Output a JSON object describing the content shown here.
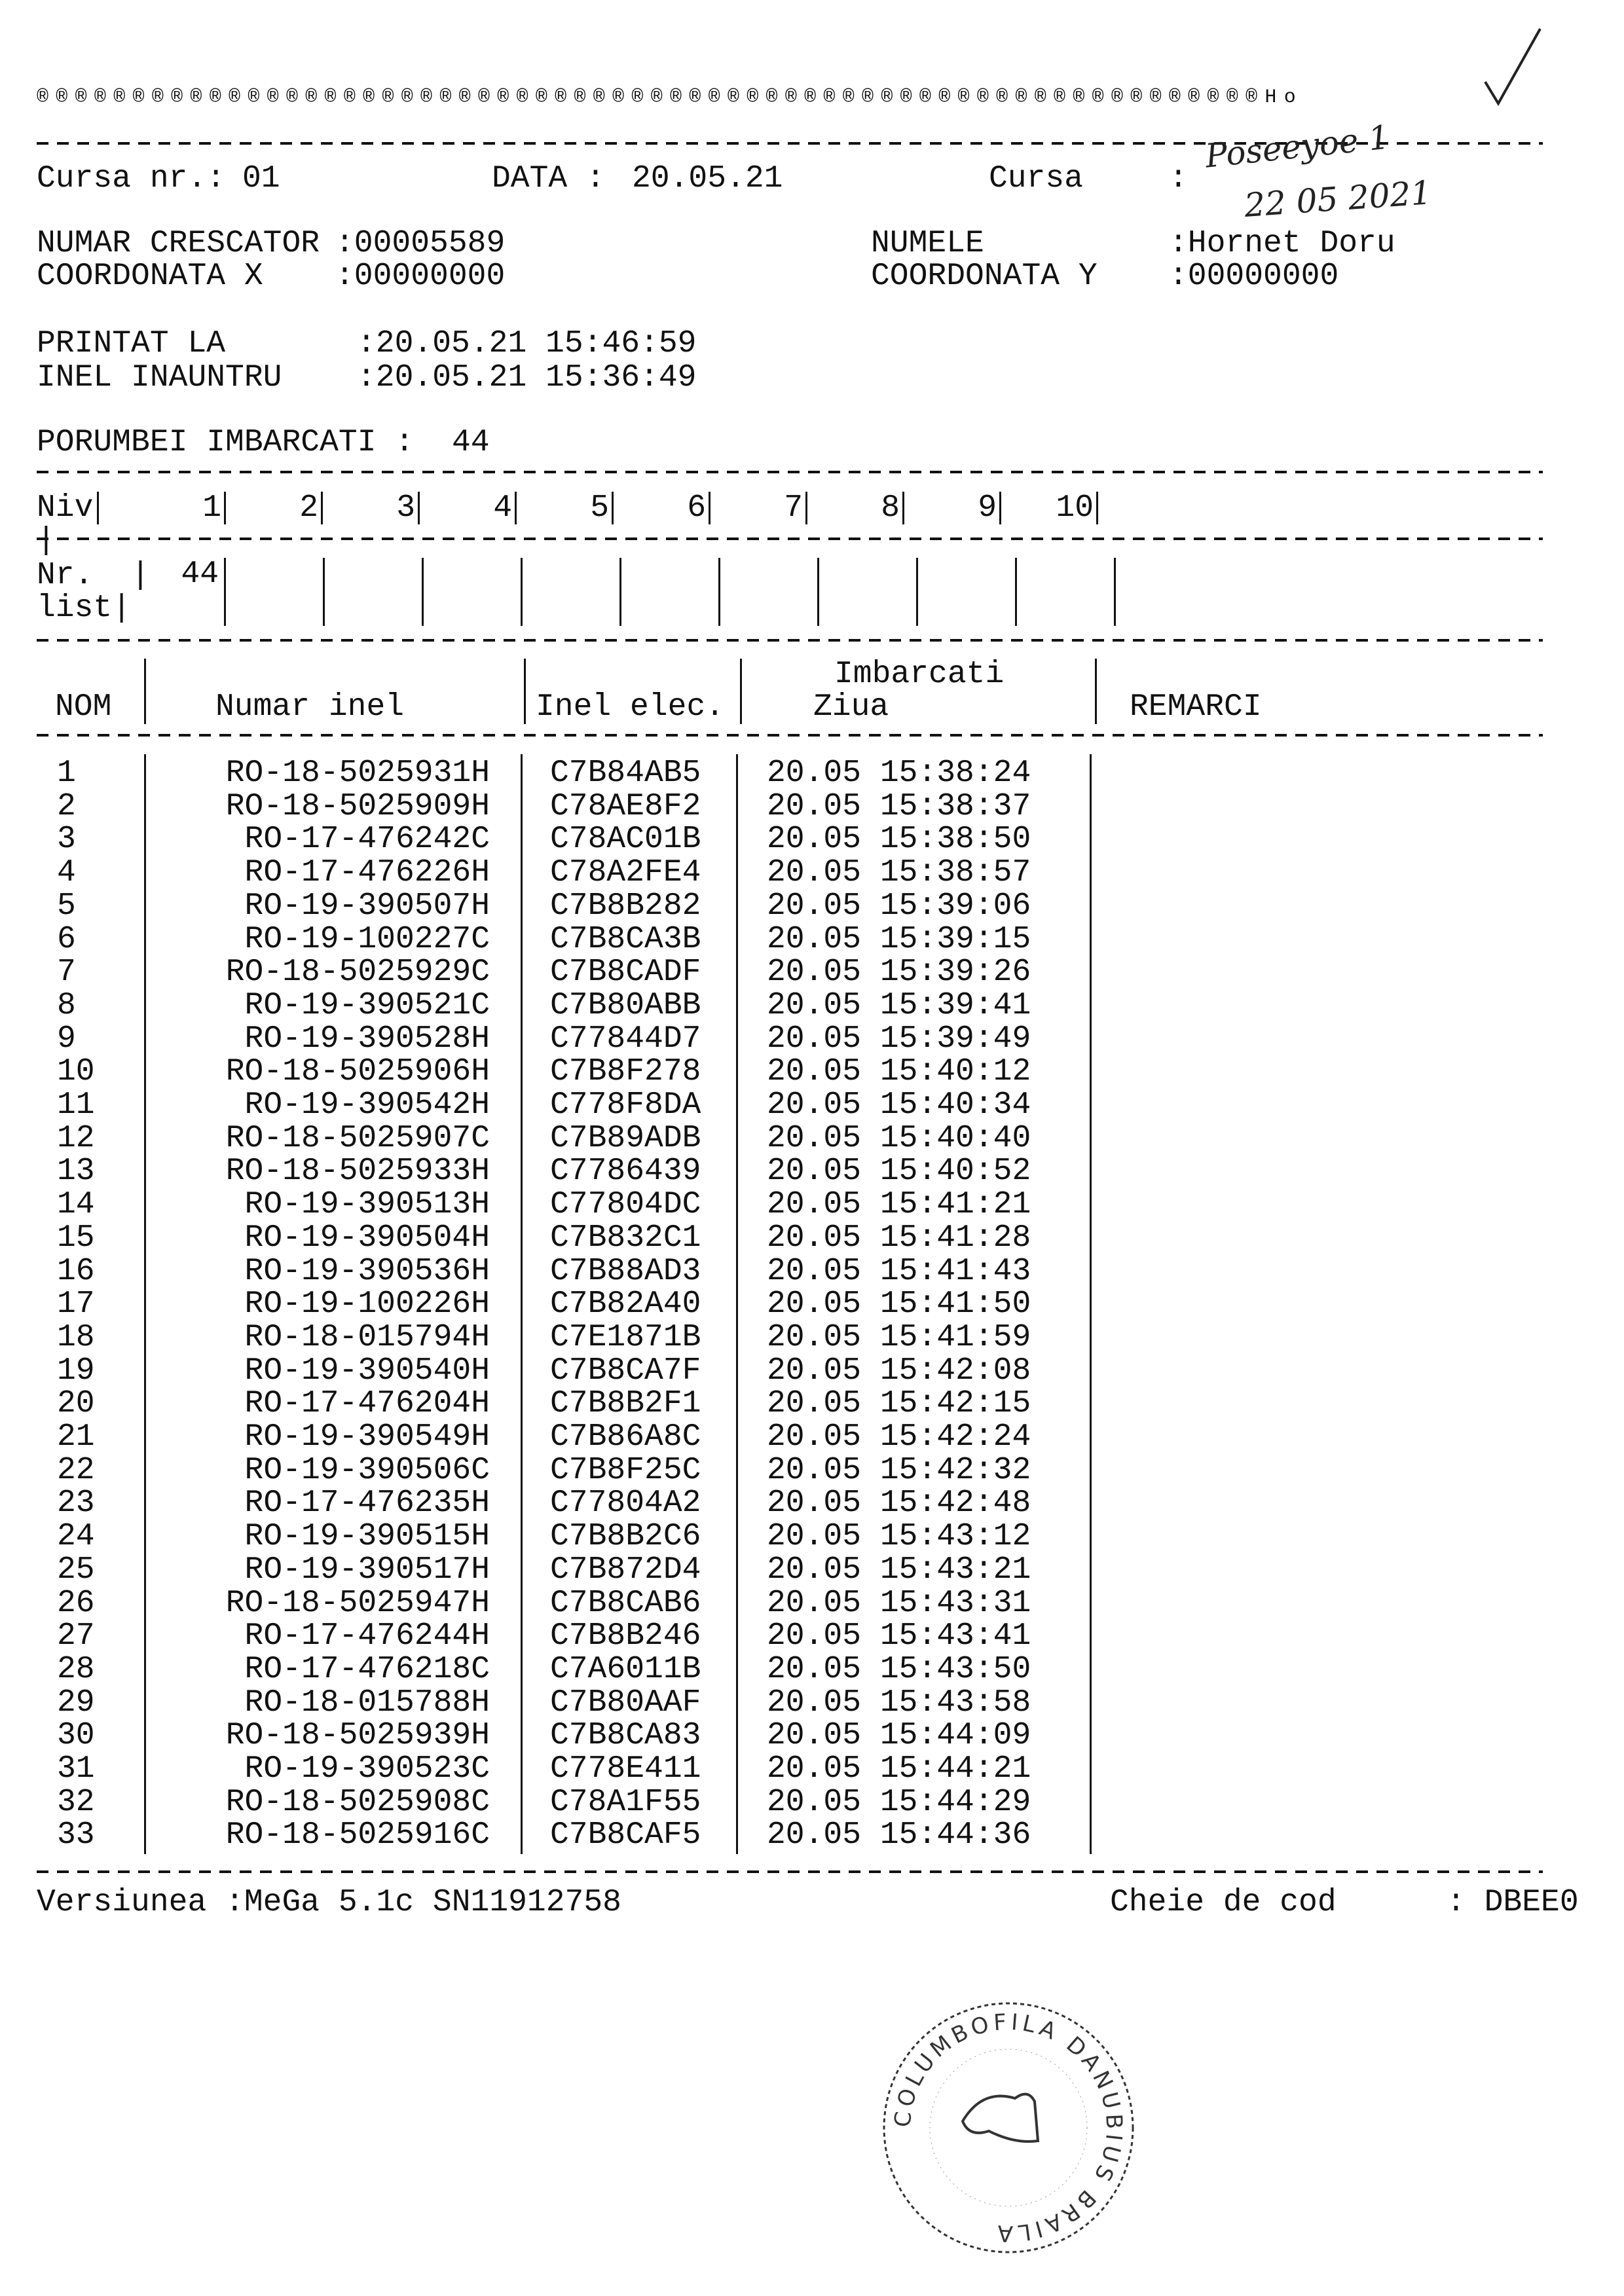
{
  "header_symbols": "®®®®®®®®®®®®®®®®®®®®®®®®®®®®®®®®®®®®®®®®®®®®®®®®®®®®®®®®®®®®®®®®Ho",
  "race": {
    "cursa_nr_label": "Cursa nr.:",
    "cursa_nr": "01",
    "data_label": "DATA :",
    "data": "20.05.21",
    "cursa_label": "Cursa",
    "cursa_sep": ":"
  },
  "handwritten": {
    "line1": "Poseeyoe 1",
    "line2": "22 05 2021"
  },
  "breeder": {
    "numar_label": "NUMAR CRESCATOR",
    "numar": ":00005589",
    "coord_x_label": "COORDONATA X",
    "coord_x": ":00000000",
    "numele_label": "NUMELE",
    "numele": ":Hornet Doru",
    "coord_y_label": "COORDONATA Y",
    "coord_y": ":00000000"
  },
  "times": {
    "printat_label": "PRINTAT LA",
    "printat": ":20.05.21 15:46:59",
    "inel_label": "INEL INAUNTRU",
    "inel": ":20.05.21 15:36:49"
  },
  "porumbei": {
    "label": "PORUMBEI IMBARCATI :",
    "value": "44"
  },
  "levels": {
    "niv_label": "Niv |",
    "niv": [
      "1",
      "2",
      "3",
      "4",
      "5",
      "6",
      "7",
      "8",
      "9",
      "10"
    ],
    "nr_label_1": "Nr.  |",
    "nr_label_2": "list|",
    "nr": [
      "44",
      "",
      "",
      "",
      "",
      "",
      "",
      "",
      "",
      ""
    ]
  },
  "table": {
    "headers": {
      "nom": "NOM",
      "numar_inel": "Numar inel",
      "inel_elec": "Inel elec.",
      "imbarcati": "Imbarcati",
      "ziua": "Ziua",
      "remarci": "REMARCI"
    },
    "rows": [
      [
        "1",
        "RO-18-5025931H",
        "C7B84AB5",
        "20.05 15:38:24"
      ],
      [
        "2",
        "RO-18-5025909H",
        "C78AE8F2",
        "20.05 15:38:37"
      ],
      [
        "3",
        "RO-17-476242C",
        "C78AC01B",
        "20.05 15:38:50"
      ],
      [
        "4",
        "RO-17-476226H",
        "C78A2FE4",
        "20.05 15:38:57"
      ],
      [
        "5",
        "RO-19-390507H",
        "C7B8B282",
        "20.05 15:39:06"
      ],
      [
        "6",
        "RO-19-100227C",
        "C7B8CA3B",
        "20.05 15:39:15"
      ],
      [
        "7",
        "RO-18-5025929C",
        "C7B8CADF",
        "20.05 15:39:26"
      ],
      [
        "8",
        "RO-19-390521C",
        "C7B80ABB",
        "20.05 15:39:41"
      ],
      [
        "9",
        "RO-19-390528H",
        "C77844D7",
        "20.05 15:39:49"
      ],
      [
        "10",
        "RO-18-5025906H",
        "C7B8F278",
        "20.05 15:40:12"
      ],
      [
        "11",
        "RO-19-390542H",
        "C778F8DA",
        "20.05 15:40:34"
      ],
      [
        "12",
        "RO-18-5025907C",
        "C7B89ADB",
        "20.05 15:40:40"
      ],
      [
        "13",
        "RO-18-5025933H",
        "C7786439",
        "20.05 15:40:52"
      ],
      [
        "14",
        "RO-19-390513H",
        "C77804DC",
        "20.05 15:41:21"
      ],
      [
        "15",
        "RO-19-390504H",
        "C7B832C1",
        "20.05 15:41:28"
      ],
      [
        "16",
        "RO-19-390536H",
        "C7B88AD3",
        "20.05 15:41:43"
      ],
      [
        "17",
        "RO-19-100226H",
        "C7B82A40",
        "20.05 15:41:50"
      ],
      [
        "18",
        "RO-18-015794H",
        "C7E1871B",
        "20.05 15:41:59"
      ],
      [
        "19",
        "RO-19-390540H",
        "C7B8CA7F",
        "20.05 15:42:08"
      ],
      [
        "20",
        "RO-17-476204H",
        "C7B8B2F1",
        "20.05 15:42:15"
      ],
      [
        "21",
        "RO-19-390549H",
        "C7B86A8C",
        "20.05 15:42:24"
      ],
      [
        "22",
        "RO-19-390506C",
        "C7B8F25C",
        "20.05 15:42:32"
      ],
      [
        "23",
        "RO-17-476235H",
        "C77804A2",
        "20.05 15:42:48"
      ],
      [
        "24",
        "RO-19-390515H",
        "C7B8B2C6",
        "20.05 15:43:12"
      ],
      [
        "25",
        "RO-19-390517H",
        "C7B872D4",
        "20.05 15:43:21"
      ],
      [
        "26",
        "RO-18-5025947H",
        "C7B8CAB6",
        "20.05 15:43:31"
      ],
      [
        "27",
        "RO-17-476244H",
        "C7B8B246",
        "20.05 15:43:41"
      ],
      [
        "28",
        "RO-17-476218C",
        "C7A6011B",
        "20.05 15:43:50"
      ],
      [
        "29",
        "RO-18-015788H",
        "C7B80AAF",
        "20.05 15:43:58"
      ],
      [
        "30",
        "RO-18-5025939H",
        "C7B8CA83",
        "20.05 15:44:09"
      ],
      [
        "31",
        "RO-19-390523C",
        "C778E411",
        "20.05 15:44:21"
      ],
      [
        "32",
        "RO-18-5025908C",
        "C78A1F55",
        "20.05 15:44:29"
      ],
      [
        "33",
        "RO-18-5025916C",
        "C7B8CAF5",
        "20.05 15:44:36"
      ]
    ]
  },
  "footer": {
    "versiunea": "Versiunea :MeGa 5.1c SN11912758",
    "cheie_label": "Cheie de cod",
    "cheie": ": DBEE0"
  },
  "stamp": {
    "text": "COLUMBOFILA DANUBIUS BRAILA"
  }
}
